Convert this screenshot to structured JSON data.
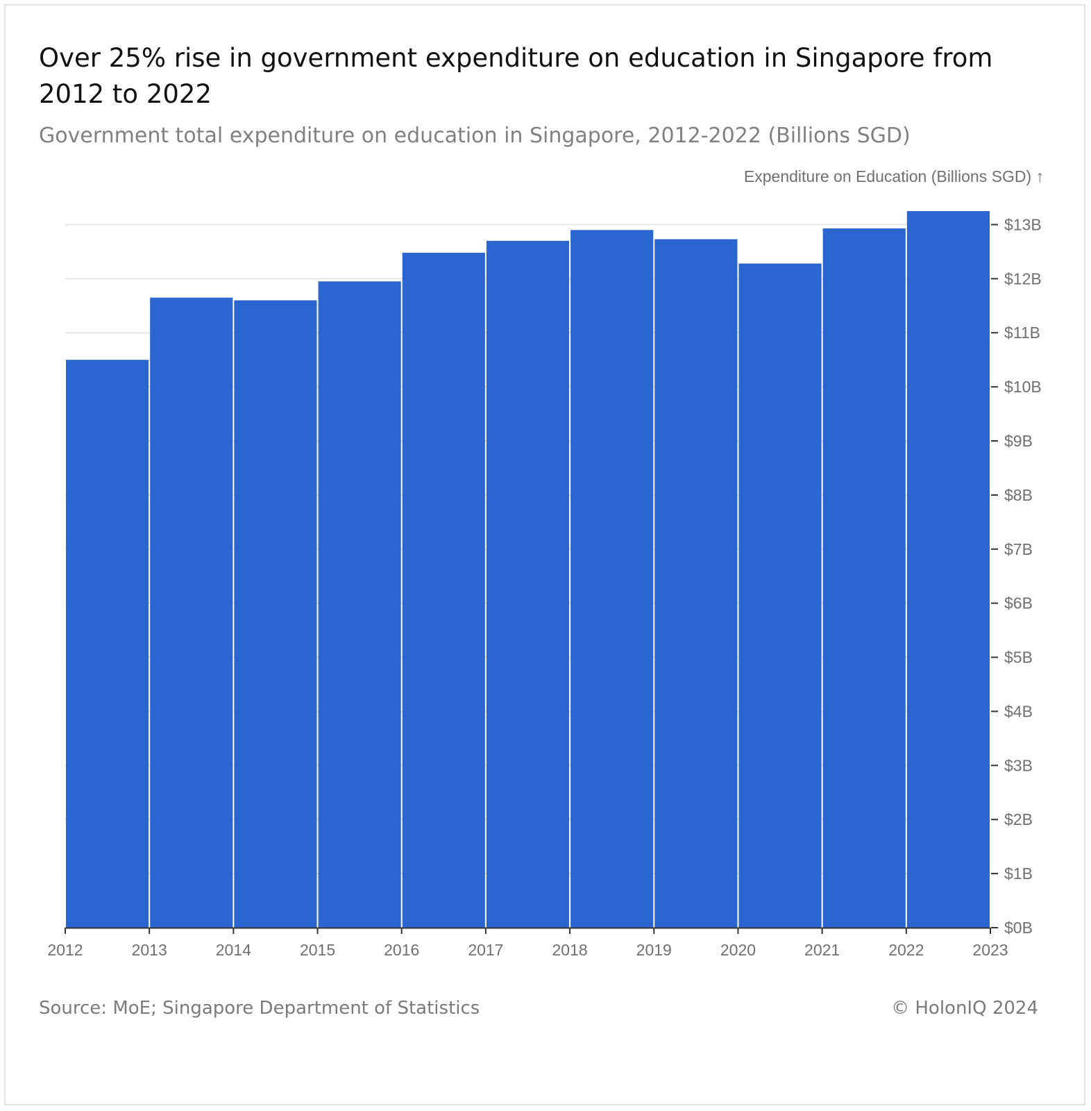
{
  "header": {
    "title": "Over 25% rise in government expenditure on education in Singapore from 2012 to 2022",
    "subtitle": "Government total expenditure on education in Singapore, 2012-2022 (Billions SGD)"
  },
  "footer": {
    "source": "Source: MoE; Singapore Department of Statistics",
    "copyright": "© HolonIQ 2024"
  },
  "colors": {
    "bar": "#2b65cf",
    "grid": "#e6e6e6",
    "axis": "#333333",
    "text": "#6f6f6f"
  },
  "chart_data": {
    "type": "bar",
    "title": "Over 25% rise in government expenditure on education in Singapore from 2012 to 2022",
    "subtitle": "Government total expenditure on education in Singapore, 2012-2022 (Billions SGD)",
    "ylabel": "Expenditure on Education (Billions SGD) ↑",
    "xlabel": "",
    "x_bins": [
      2012,
      2013,
      2014,
      2015,
      2016,
      2017,
      2018,
      2019,
      2020,
      2021,
      2022,
      2023
    ],
    "x_tick_labels": [
      "2012",
      "2013",
      "2014",
      "2015",
      "2016",
      "2017",
      "2018",
      "2019",
      "2020",
      "2021",
      "2022",
      "2023"
    ],
    "categories": [
      "2012",
      "2013",
      "2014",
      "2015",
      "2016",
      "2017",
      "2018",
      "2019",
      "2020",
      "2021",
      "2022"
    ],
    "values": [
      10.5,
      11.65,
      11.6,
      11.95,
      12.48,
      12.7,
      12.9,
      12.73,
      12.28,
      12.93,
      13.25
    ],
    "ylim": [
      0,
      13.25
    ],
    "y_ticks": [
      0,
      1,
      2,
      3,
      4,
      5,
      6,
      7,
      8,
      9,
      10,
      11,
      12,
      13
    ],
    "y_tick_labels": [
      "$0B",
      "$1B",
      "$2B",
      "$3B",
      "$4B",
      "$5B",
      "$6B",
      "$7B",
      "$8B",
      "$9B",
      "$10B",
      "$11B",
      "$12B",
      "$13B"
    ],
    "y_axis_position": "right",
    "grid": true,
    "legend": "none"
  }
}
